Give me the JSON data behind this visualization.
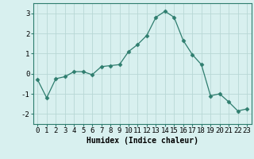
{
  "x": [
    0,
    1,
    2,
    3,
    4,
    5,
    6,
    7,
    8,
    9,
    10,
    11,
    12,
    13,
    14,
    15,
    16,
    17,
    18,
    19,
    20,
    21,
    22,
    23
  ],
  "y": [
    -0.3,
    -1.2,
    -0.25,
    -0.15,
    0.1,
    0.1,
    -0.05,
    0.35,
    0.4,
    0.45,
    1.1,
    1.45,
    1.9,
    2.8,
    3.1,
    2.8,
    1.65,
    0.95,
    0.45,
    -1.1,
    -1.0,
    -1.4,
    -1.85,
    -1.75
  ],
  "line_color": "#2e7d6e",
  "marker": "D",
  "marker_size": 2.5,
  "bg_color": "#d8f0ef",
  "grid_color": "#b8d8d5",
  "xlabel": "Humidex (Indice chaleur)",
  "xlabel_fontsize": 7,
  "tick_fontsize": 6.5,
  "ylim": [
    -2.5,
    3.5
  ],
  "xlim": [
    -0.5,
    23.5
  ],
  "yticks": [
    -2,
    -1,
    0,
    1,
    2,
    3
  ],
  "xticks": [
    0,
    1,
    2,
    3,
    4,
    5,
    6,
    7,
    8,
    9,
    10,
    11,
    12,
    13,
    14,
    15,
    16,
    17,
    18,
    19,
    20,
    21,
    22,
    23
  ]
}
